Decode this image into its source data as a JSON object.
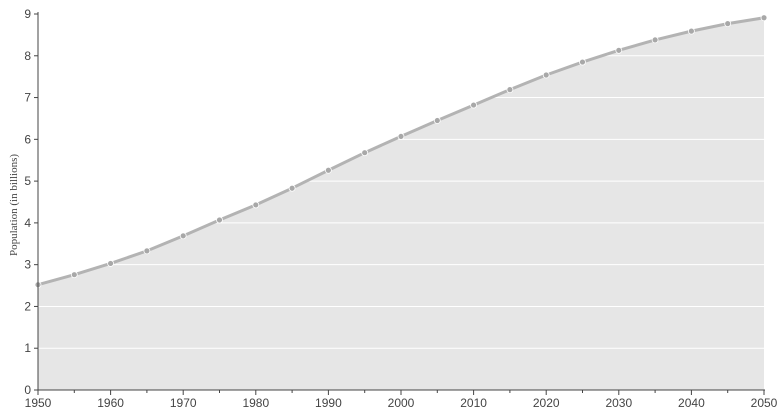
{
  "chart_data": {
    "type": "area",
    "title": "",
    "xlabel": "",
    "ylabel": "Population (in billions)",
    "xlim": [
      1950,
      2050
    ],
    "ylim": [
      0,
      9
    ],
    "x_ticks": [
      1950,
      1960,
      1970,
      1980,
      1990,
      2000,
      2010,
      2020,
      2030,
      2040,
      2050
    ],
    "y_ticks": [
      0,
      1,
      2,
      3,
      4,
      5,
      6,
      7,
      8,
      9
    ],
    "grid": "horizontal",
    "legend": "none",
    "series": [
      {
        "x": [
          1950,
          1955,
          1960,
          1965,
          1970,
          1975,
          1980,
          1985,
          1990,
          1995,
          2000,
          2005,
          2010,
          2015,
          2020,
          2025,
          2030,
          2035,
          2040,
          2045,
          2050
        ],
        "values": [
          2.52,
          2.76,
          3.03,
          3.33,
          3.69,
          4.07,
          4.43,
          4.83,
          5.26,
          5.68,
          6.07,
          6.45,
          6.82,
          7.19,
          7.54,
          7.85,
          8.13,
          8.38,
          8.59,
          8.77,
          8.91
        ]
      }
    ],
    "colors": {
      "fill": "#e6e6e6",
      "line": "#b3b3b3",
      "marker": "#a8a8a8",
      "axis": "#444444",
      "grid": "#ffffff"
    }
  }
}
